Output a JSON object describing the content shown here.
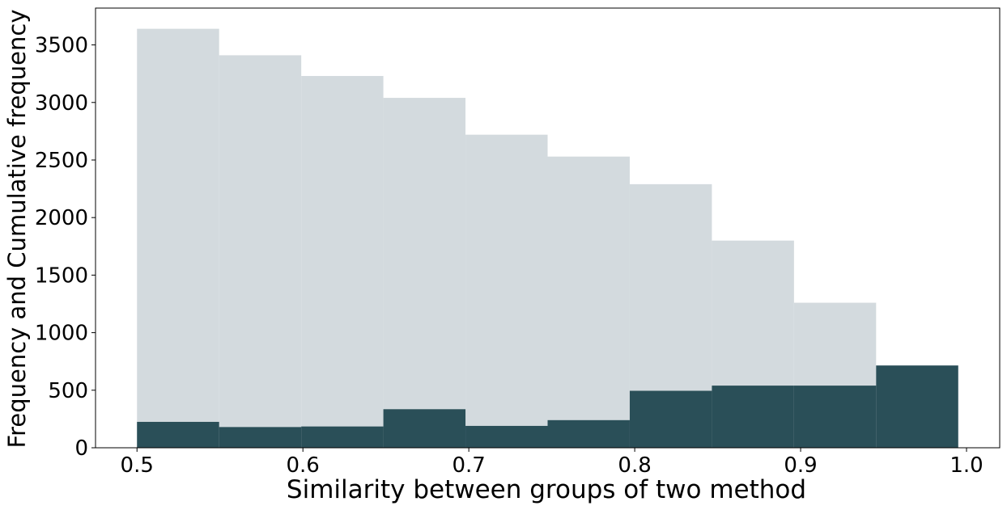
{
  "chart_data": {
    "type": "bar",
    "title": "",
    "xlabel": "Similarity between groups of two method",
    "ylabel": "Frequency and Cumulative frequency",
    "xlim": [
      0.475,
      1.02
    ],
    "ylim": [
      0,
      3820
    ],
    "bin_edges": [
      0.5,
      0.5495,
      0.599,
      0.6485,
      0.698,
      0.7475,
      0.797,
      0.8465,
      0.896,
      0.9455,
      0.995
    ],
    "xticks": [
      "0.5",
      "0.6",
      "0.7",
      "0.8",
      "0.9",
      "1.0"
    ],
    "xtick_values": [
      0.5,
      0.6,
      0.7,
      0.8,
      0.9,
      1.0
    ],
    "yticks": [
      "0",
      "500",
      "1000",
      "1500",
      "2000",
      "2500",
      "3000",
      "3500"
    ],
    "ytick_values": [
      0,
      500,
      1000,
      1500,
      2000,
      2500,
      3000,
      3500
    ],
    "grid": false,
    "series": [
      {
        "color": "#d3dade",
        "values": [
          3640,
          3410,
          3230,
          3040,
          2720,
          2530,
          2290,
          1800,
          1260,
          0
        ]
      },
      {
        "color": "#2a4f58",
        "values": [
          225,
          180,
          185,
          335,
          190,
          240,
          495,
          540,
          540,
          715
        ]
      }
    ]
  }
}
